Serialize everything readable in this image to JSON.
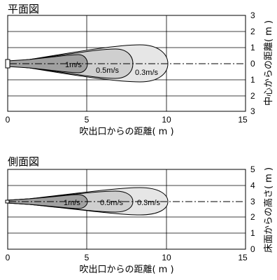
{
  "top": {
    "title": "平面図",
    "xlabel": "吹出口からの距離( m )",
    "ylabel": "中心からの距離( m )",
    "x_ticks": [
      "0",
      "5",
      "10",
      "15"
    ],
    "y_ticks": [
      "3",
      "2",
      "1",
      "0",
      "1",
      "2",
      "3"
    ],
    "zones": [
      "1m/s",
      "0.5m/s",
      "0.3m/s"
    ]
  },
  "side": {
    "title": "側面図",
    "xlabel": "吹出口からの距離( m )",
    "ylabel": "床面からの高さ( m )",
    "x_ticks": [
      "0",
      "5",
      "10",
      "15"
    ],
    "y_ticks": [
      "5",
      "4",
      "3",
      "2",
      "1",
      "0"
    ],
    "zones": [
      "1m/s",
      "0.5m/s",
      "0.3m/s"
    ]
  },
  "chart_data": [
    {
      "type": "area",
      "title": "平面図",
      "xlabel": "吹出口からの距離( m )",
      "ylabel": "中心からの距離( m )",
      "xlim": [
        0,
        15
      ],
      "ylim": [
        -3,
        3
      ],
      "series": [
        {
          "name": "0.3m/s",
          "reach": 10.0,
          "half_width": 1.1
        },
        {
          "name": "0.5m/s",
          "reach": 7.8,
          "half_width": 0.9
        },
        {
          "name": "1m/s",
          "reach": 5.0,
          "half_width": 0.55
        }
      ],
      "grid": true
    },
    {
      "type": "area",
      "title": "側面図",
      "xlabel": "吹出口からの距離( m )",
      "ylabel": "床面からの高さ( m )",
      "xlim": [
        0,
        15
      ],
      "ylim": [
        0,
        5
      ],
      "center_height": 3,
      "series": [
        {
          "name": "0.3m/s",
          "reach": 10.0,
          "half_width": 0.8
        },
        {
          "name": "0.5m/s",
          "reach": 7.8,
          "half_width": 0.7
        },
        {
          "name": "1m/s",
          "reach": 5.0,
          "half_width": 0.45
        }
      ],
      "grid": true
    }
  ]
}
